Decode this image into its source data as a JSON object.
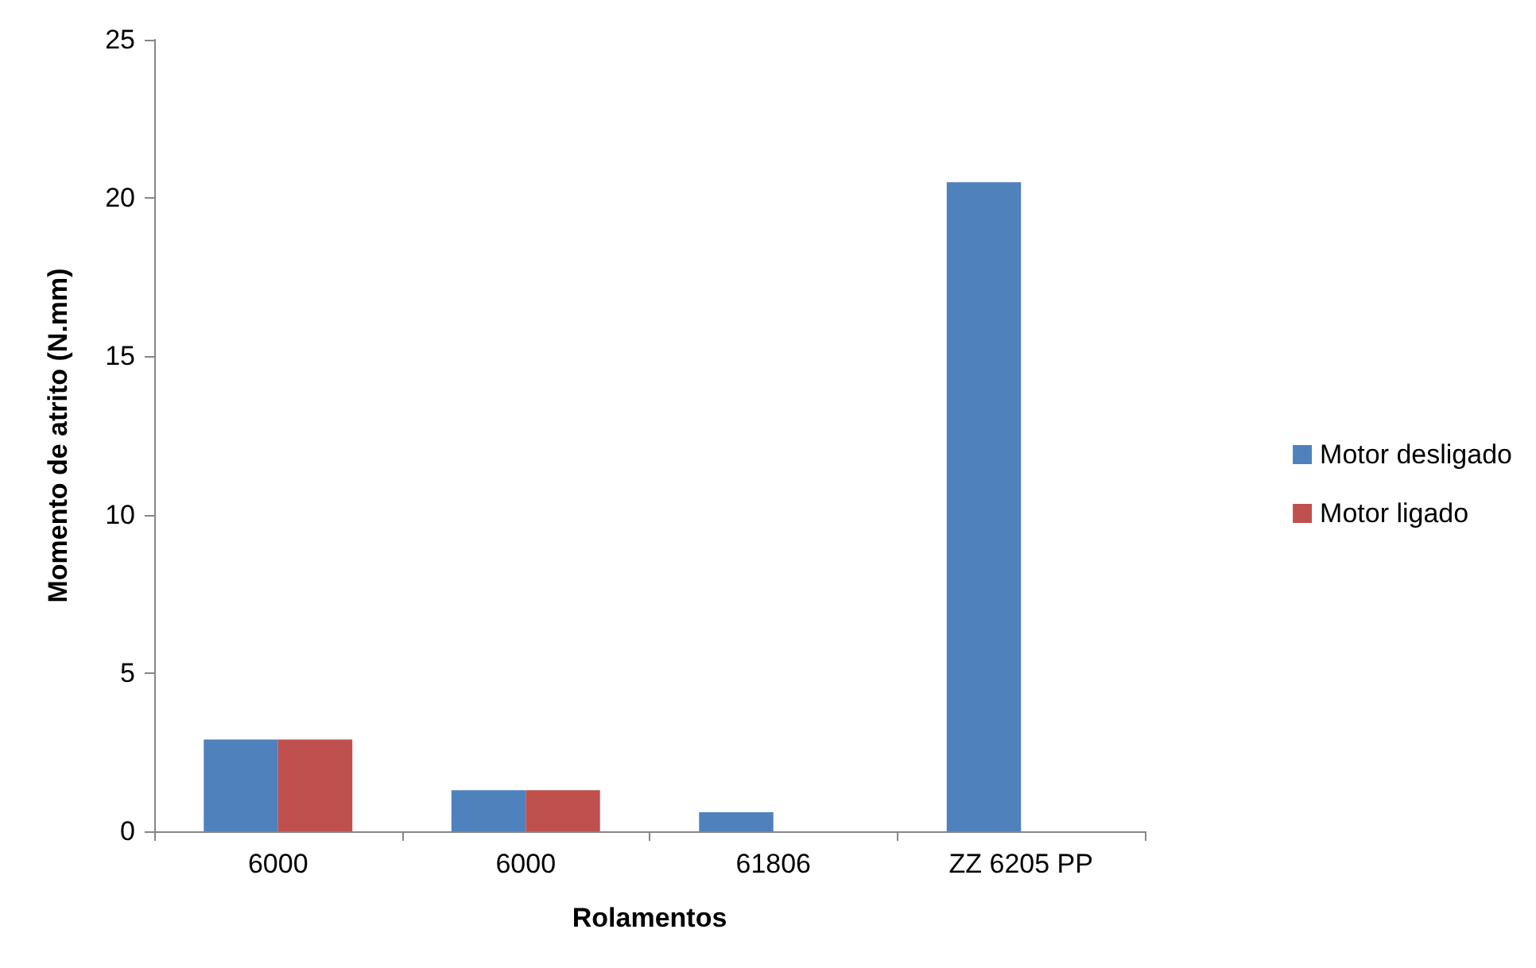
{
  "chart_data": {
    "type": "bar",
    "xlabel": "Rolamentos",
    "ylabel": "Momento de atrito (N.mm)",
    "categories": [
      "6000",
      "6000",
      "61806",
      "ZZ 6205 PP"
    ],
    "series": [
      {
        "name": "Motor desligado",
        "color": "#4f81bd",
        "values": [
          2.9,
          1.3,
          0.6,
          20.5
        ]
      },
      {
        "name": "Motor ligado",
        "color": "#c0504d",
        "values": [
          2.9,
          1.3,
          null,
          null
        ]
      }
    ],
    "ylim": [
      0,
      25
    ],
    "yticks": [
      0,
      5,
      10,
      15,
      20,
      25
    ],
    "grid": false,
    "legend": "right"
  }
}
